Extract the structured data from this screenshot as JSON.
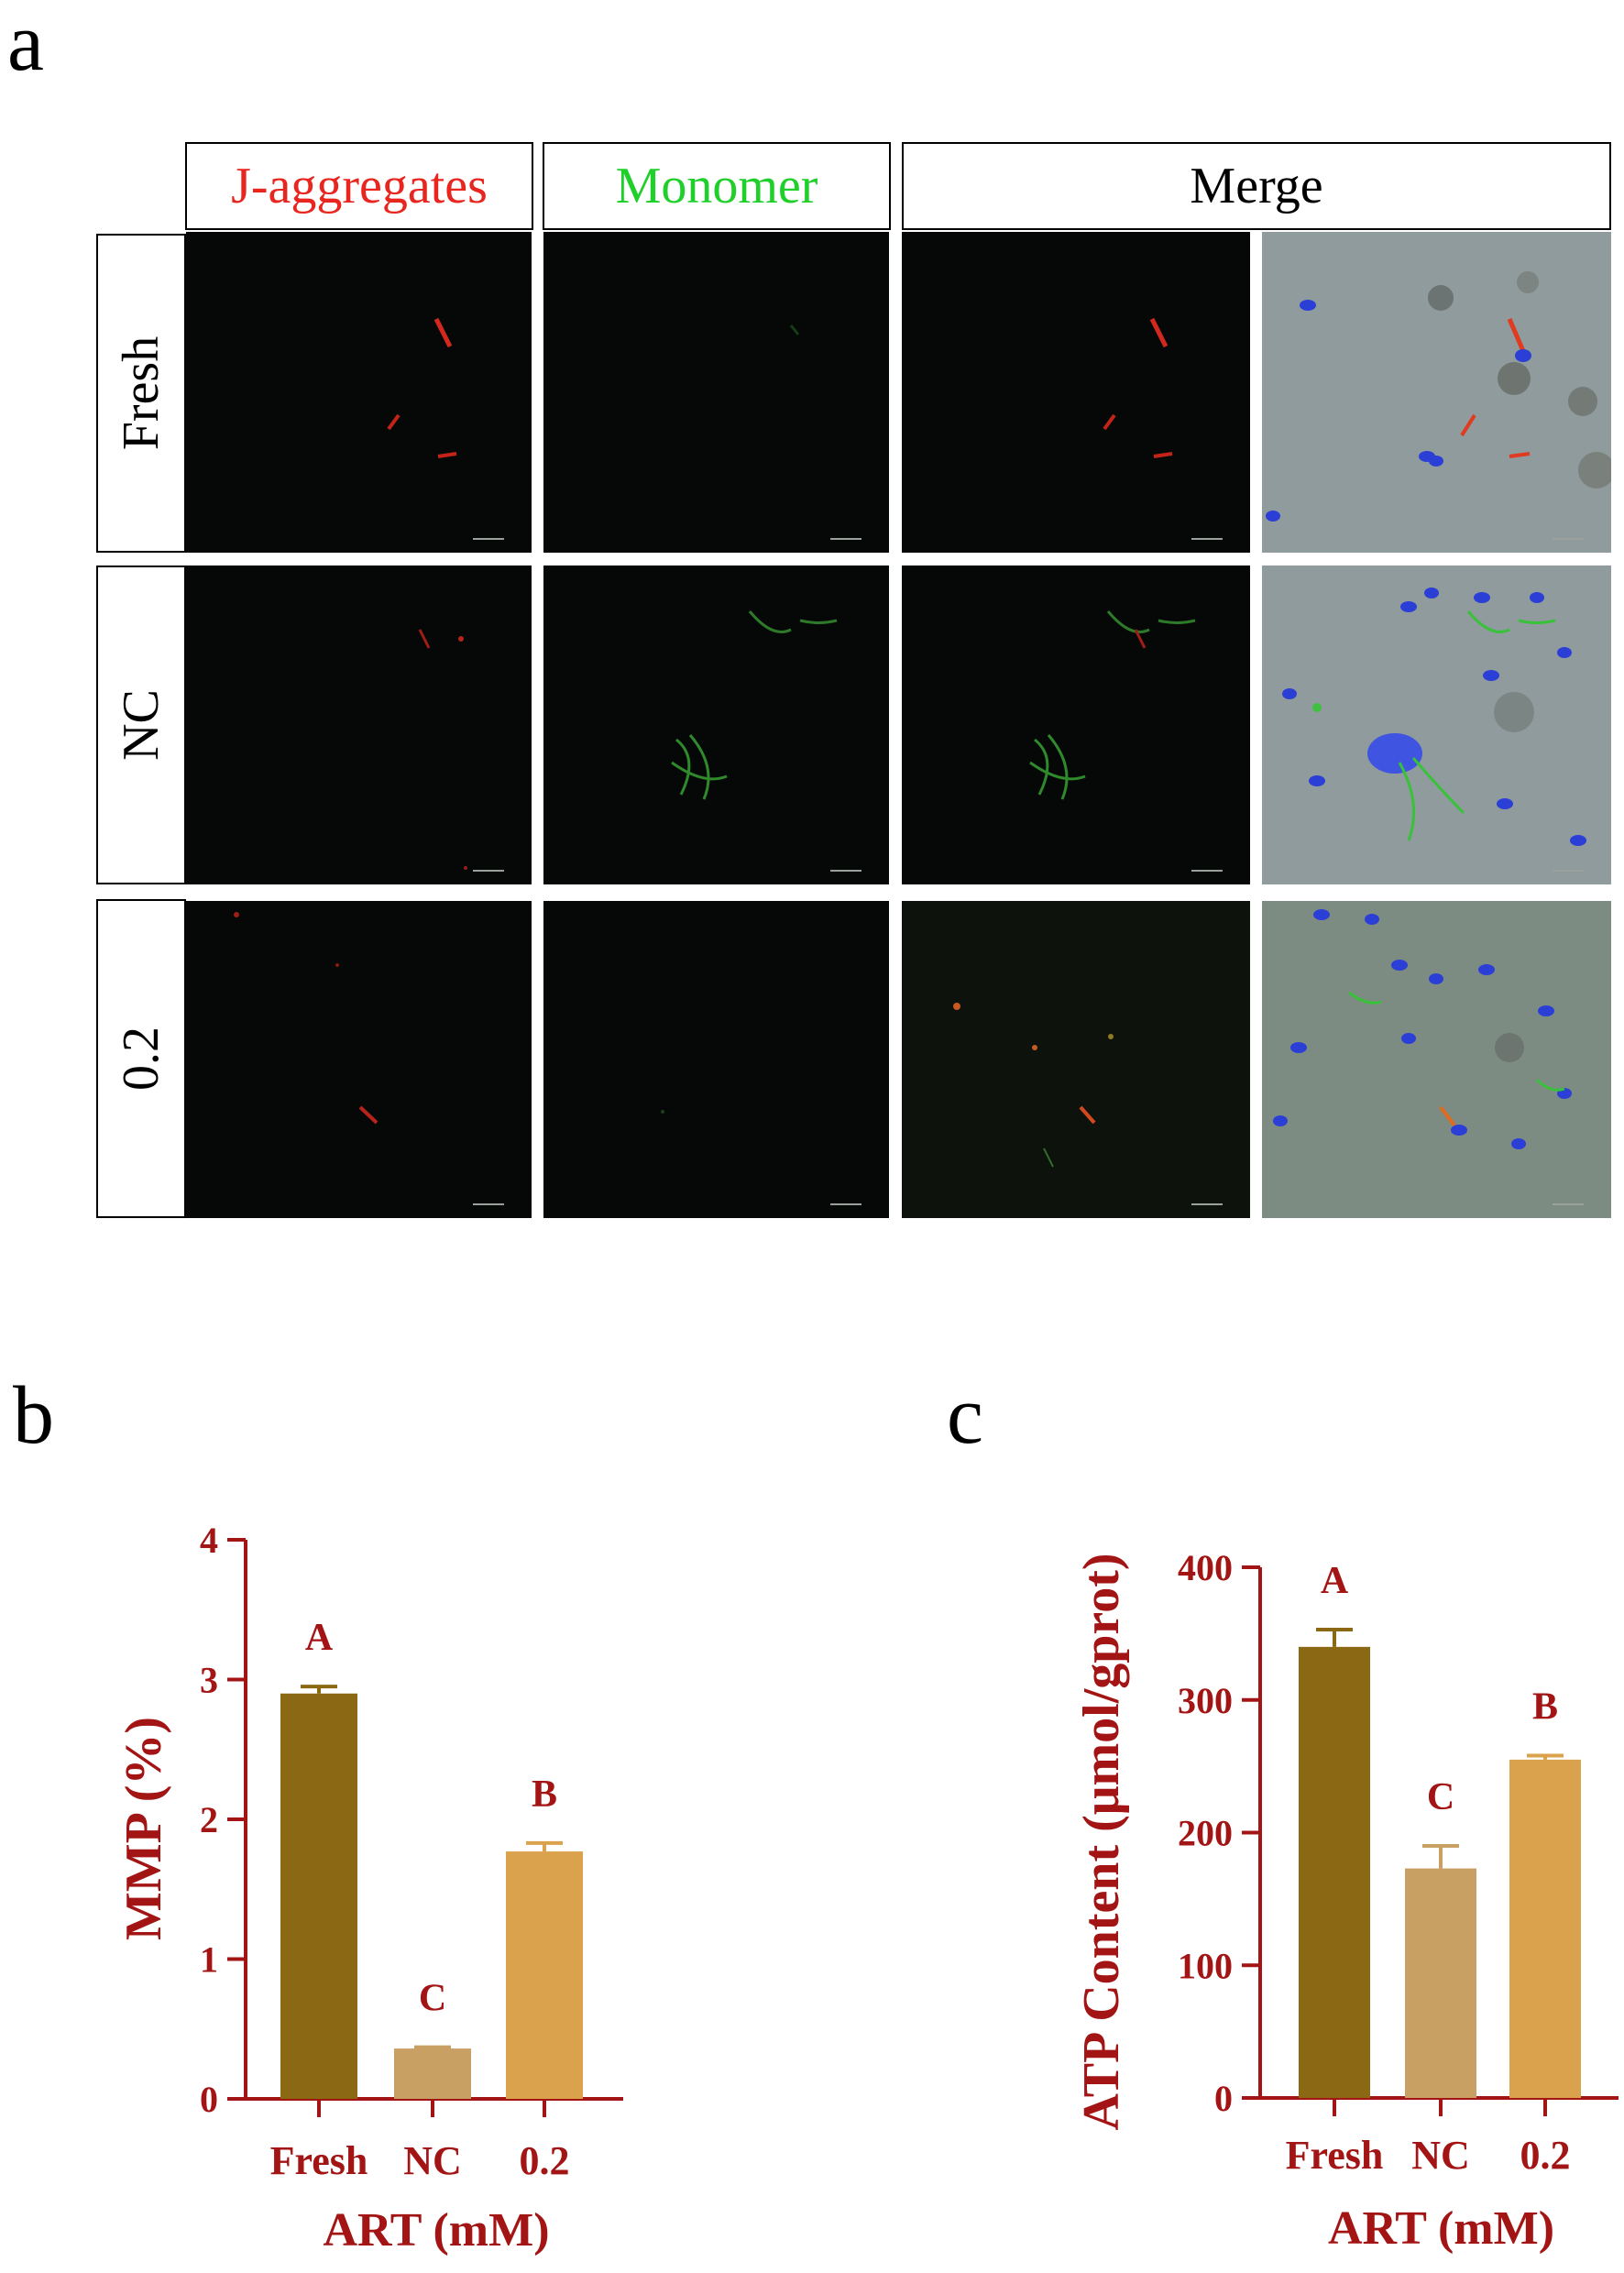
{
  "panels": {
    "a": "a",
    "b": "b",
    "c": "c"
  },
  "microscopy": {
    "column_headers": [
      {
        "text": "J-aggregates",
        "color": "#e8261f"
      },
      {
        "text": "Monomer",
        "color": "#1fcf2a"
      },
      {
        "text": "Merge",
        "color": "#000000"
      }
    ],
    "row_labels": [
      "Fresh",
      "NC",
      "0.2"
    ]
  },
  "chart_data": [
    {
      "type": "bar",
      "panel": "b",
      "categories": [
        "Fresh",
        "NC",
        "0.2"
      ],
      "values": [
        2.9,
        0.36,
        1.77
      ],
      "errors": [
        0.05,
        0.01,
        0.06
      ],
      "significance_letters": [
        "A",
        "C",
        "B"
      ],
      "colors": [
        "#8b6914",
        "#c9a064",
        "#dba24d"
      ],
      "ylabel": "MMP (%)",
      "xlabel": "ART (mM)",
      "ylim": [
        0,
        4
      ],
      "yticks": [
        0,
        1,
        2,
        3,
        4
      ],
      "axis_color": "#a31515",
      "grid": false
    },
    {
      "type": "bar",
      "panel": "c",
      "categories": [
        "Fresh",
        "NC",
        "0.2"
      ],
      "values": [
        340,
        173,
        255
      ],
      "errors": [
        13,
        17,
        3
      ],
      "significance_letters": [
        "A",
        "C",
        "B"
      ],
      "colors": [
        "#8b6914",
        "#c9a064",
        "#dba24d"
      ],
      "ylabel": "ATP Content (μmol/gprot)",
      "xlabel": "ART (mM)",
      "ylim": [
        0,
        400
      ],
      "yticks": [
        0,
        100,
        200,
        300,
        400
      ],
      "axis_color": "#a31515",
      "grid": false
    }
  ]
}
